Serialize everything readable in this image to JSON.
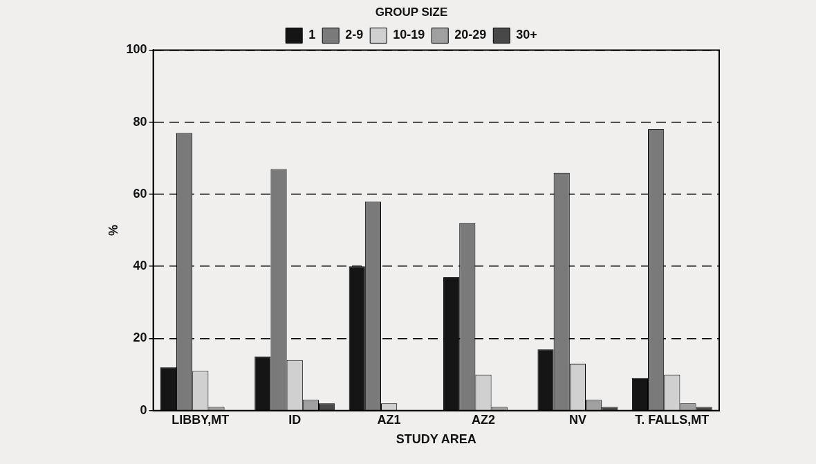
{
  "chart_data": {
    "type": "bar",
    "xlabel": "STUDY AREA",
    "ylabel": "%",
    "legend_title": "GROUP SIZE",
    "categories": [
      "LIBBY,MT",
      "ID",
      "AZ1",
      "AZ2",
      "NV",
      "T. FALLS,MT"
    ],
    "series": [
      {
        "name": "1",
        "color": "#151515",
        "values": [
          12,
          15,
          40,
          37,
          17,
          9
        ]
      },
      {
        "name": "2-9",
        "color": "#7a7a7a",
        "values": [
          77,
          67,
          58,
          52,
          66,
          78
        ]
      },
      {
        "name": "10-19",
        "color": "#d0d0d0",
        "values": [
          11,
          14,
          2,
          10,
          13,
          10
        ]
      },
      {
        "name": "20-29",
        "color": "#a0a0a0",
        "values": [
          1,
          3,
          0,
          1,
          3,
          2
        ]
      },
      {
        "name": "30+",
        "color": "#484848",
        "values": [
          0,
          2,
          0,
          0,
          1,
          1
        ]
      }
    ],
    "ylim": [
      0,
      100
    ],
    "yticks": [
      0,
      20,
      40,
      60,
      80,
      100
    ],
    "grid": "y",
    "legend": "top"
  }
}
